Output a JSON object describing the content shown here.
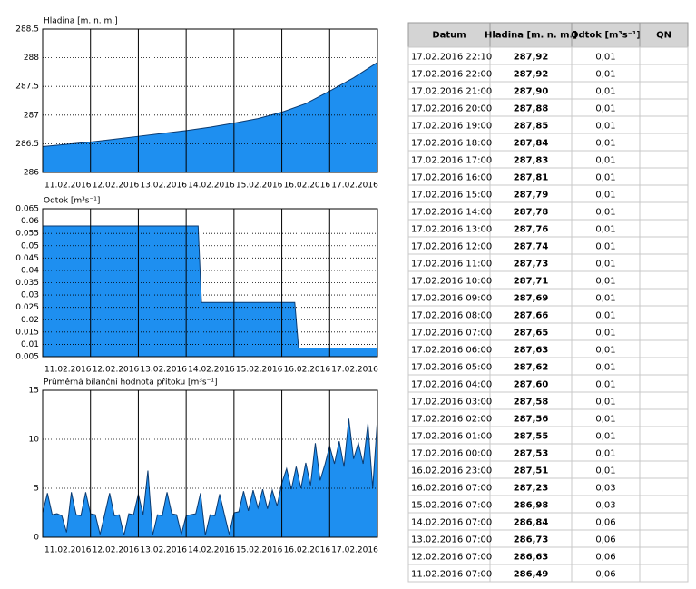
{
  "chart_data": [
    {
      "type": "area",
      "title": "Hladina [m. n. m.]",
      "color": "#1e8ff0",
      "x": [
        0,
        0.5,
        1,
        1.5,
        2,
        2.5,
        3,
        3.5,
        4,
        4.5,
        5,
        5.5,
        6,
        6.5,
        7
      ],
      "values": [
        286.45,
        286.49,
        286.53,
        286.58,
        286.63,
        286.68,
        286.73,
        286.79,
        286.86,
        286.94,
        287.05,
        287.2,
        287.42,
        287.65,
        287.92
      ],
      "xlim": [
        0,
        7
      ],
      "ylim": [
        286,
        288.5
      ],
      "xticks": [
        {
          "value": 0,
          "label": "11.02.2016"
        },
        {
          "value": 1,
          "label": "12.02.2016"
        },
        {
          "value": 2,
          "label": "13.02.2016"
        },
        {
          "value": 3,
          "label": "14.02.2016"
        },
        {
          "value": 4,
          "label": "15.02.2016"
        },
        {
          "value": 5,
          "label": "16.02.2016"
        },
        {
          "value": 6,
          "label": "17.02.2016"
        }
      ],
      "yticks": [
        286,
        286.5,
        287,
        287.5,
        288,
        288.5
      ],
      "grid": true
    },
    {
      "type": "area",
      "title": "Odtok [m³s⁻¹]",
      "color": "#1e8ff0",
      "x": [
        0,
        3.25,
        3.32,
        5.27,
        5.35,
        7
      ],
      "values": [
        0.058,
        0.058,
        0.027,
        0.027,
        0.0085,
        0.0085
      ],
      "xlim": [
        0,
        7
      ],
      "ylim": [
        0.005,
        0.065
      ],
      "xticks": [
        {
          "value": 0,
          "label": "11.02.2016"
        },
        {
          "value": 1,
          "label": "12.02.2016"
        },
        {
          "value": 2,
          "label": "13.02.2016"
        },
        {
          "value": 3,
          "label": "14.02.2016"
        },
        {
          "value": 4,
          "label": "15.02.2016"
        },
        {
          "value": 5,
          "label": "16.02.2016"
        },
        {
          "value": 6,
          "label": "17.02.2016"
        }
      ],
      "yticks": [
        0.005,
        0.01,
        0.015,
        0.02,
        0.025,
        0.03,
        0.035,
        0.04,
        0.045,
        0.05,
        0.055,
        0.06,
        0.065
      ],
      "grid": true
    },
    {
      "type": "area",
      "title": "Průměrná bilanční hodnota přítoku  [m³s⁻¹]",
      "color": "#1e8ff0",
      "x": [
        0,
        0.1,
        0.2,
        0.3,
        0.4,
        0.5,
        0.6,
        0.7,
        0.8,
        0.9,
        1,
        1.1,
        1.2,
        1.3,
        1.4,
        1.5,
        1.6,
        1.7,
        1.8,
        1.9,
        2,
        2.1,
        2.2,
        2.3,
        2.4,
        2.5,
        2.6,
        2.7,
        2.8,
        2.9,
        3,
        3.1,
        3.2,
        3.3,
        3.4,
        3.5,
        3.6,
        3.7,
        3.8,
        3.9,
        4,
        4.1,
        4.2,
        4.3,
        4.4,
        4.5,
        4.6,
        4.7,
        4.8,
        4.9,
        5,
        5.1,
        5.2,
        5.3,
        5.4,
        5.5,
        5.6,
        5.7,
        5.8,
        5.9,
        6,
        6.1,
        6.2,
        6.3,
        6.4,
        6.5,
        6.6,
        6.7,
        6.8,
        6.9,
        7
      ],
      "values": [
        2.5,
        4.5,
        2.3,
        2.4,
        2.2,
        0.5,
        4.6,
        2.3,
        2.2,
        4.6,
        2.4,
        2.3,
        0.3,
        2.4,
        4.5,
        2.2,
        2.3,
        0.2,
        2.4,
        2.3,
        4.4,
        2.3,
        6.8,
        0.2,
        2.3,
        2.2,
        4.6,
        2.4,
        2.3,
        0.3,
        2.2,
        2.3,
        2.4,
        4.5,
        0.2,
        2.3,
        2.2,
        4.4,
        2.3,
        0.3,
        2.5,
        2.6,
        4.7,
        2.7,
        4.8,
        3.0,
        4.9,
        2.9,
        4.8,
        3.2,
        5.5,
        7.0,
        4.9,
        7.2,
        5.0,
        7.6,
        5.3,
        9.6,
        5.8,
        7.4,
        9.3,
        7.5,
        9.8,
        7.2,
        12.1,
        8.0,
        9.6,
        7.5,
        11.6,
        5.0,
        12.2
      ],
      "xlim": [
        0,
        7
      ],
      "ylim": [
        0,
        15
      ],
      "xticks": [
        {
          "value": 0,
          "label": "11.02.2016"
        },
        {
          "value": 1,
          "label": "12.02.2016"
        },
        {
          "value": 2,
          "label": "13.02.2016"
        },
        {
          "value": 3,
          "label": "14.02.2016"
        },
        {
          "value": 4,
          "label": "15.02.2016"
        },
        {
          "value": 5,
          "label": "16.02.2016"
        },
        {
          "value": 6,
          "label": "17.02.2016"
        }
      ],
      "yticks": [
        0,
        5,
        10,
        15
      ],
      "grid": true
    }
  ],
  "table": {
    "header": [
      "Datum",
      "Hladina [m. n. m.]",
      "Odtok [m³s⁻¹]",
      "QN"
    ],
    "rows": [
      [
        "17.02.2016 22:10",
        "287,92",
        "0,01"
      ],
      [
        "17.02.2016 22:00",
        "287,92",
        "0,01"
      ],
      [
        "17.02.2016 21:00",
        "287,90",
        "0,01"
      ],
      [
        "17.02.2016 20:00",
        "287,88",
        "0,01"
      ],
      [
        "17.02.2016 19:00",
        "287,85",
        "0,01"
      ],
      [
        "17.02.2016 18:00",
        "287,84",
        "0,01"
      ],
      [
        "17.02.2016 17:00",
        "287,83",
        "0,01"
      ],
      [
        "17.02.2016 16:00",
        "287,81",
        "0,01"
      ],
      [
        "17.02.2016 15:00",
        "287,79",
        "0,01"
      ],
      [
        "17.02.2016 14:00",
        "287,78",
        "0,01"
      ],
      [
        "17.02.2016 13:00",
        "287,76",
        "0,01"
      ],
      [
        "17.02.2016 12:00",
        "287,74",
        "0,01"
      ],
      [
        "17.02.2016 11:00",
        "287,73",
        "0,01"
      ],
      [
        "17.02.2016 10:00",
        "287,71",
        "0,01"
      ],
      [
        "17.02.2016 09:00",
        "287,69",
        "0,01"
      ],
      [
        "17.02.2016 08:00",
        "287,66",
        "0,01"
      ],
      [
        "17.02.2016 07:00",
        "287,65",
        "0,01"
      ],
      [
        "17.02.2016 06:00",
        "287,63",
        "0,01"
      ],
      [
        "17.02.2016 05:00",
        "287,62",
        "0,01"
      ],
      [
        "17.02.2016 04:00",
        "287,60",
        "0,01"
      ],
      [
        "17.02.2016 03:00",
        "287,58",
        "0,01"
      ],
      [
        "17.02.2016 02:00",
        "287,56",
        "0,01"
      ],
      [
        "17.02.2016 01:00",
        "287,55",
        "0,01"
      ],
      [
        "17.02.2016 00:00",
        "287,53",
        "0,01"
      ],
      [
        "16.02.2016 23:00",
        "287,51",
        "0,01"
      ],
      [
        "16.02.2016 07:00",
        "287,23",
        "0,03"
      ],
      [
        "15.02.2016 07:00",
        "286,98",
        "0,03"
      ],
      [
        "14.02.2016 07:00",
        "286,84",
        "0,06"
      ],
      [
        "13.02.2016 07:00",
        "286,73",
        "0,06"
      ],
      [
        "12.02.2016 07:00",
        "286,63",
        "0,06"
      ],
      [
        "11.02.2016 07:00",
        "286,49",
        "0,06"
      ]
    ]
  }
}
